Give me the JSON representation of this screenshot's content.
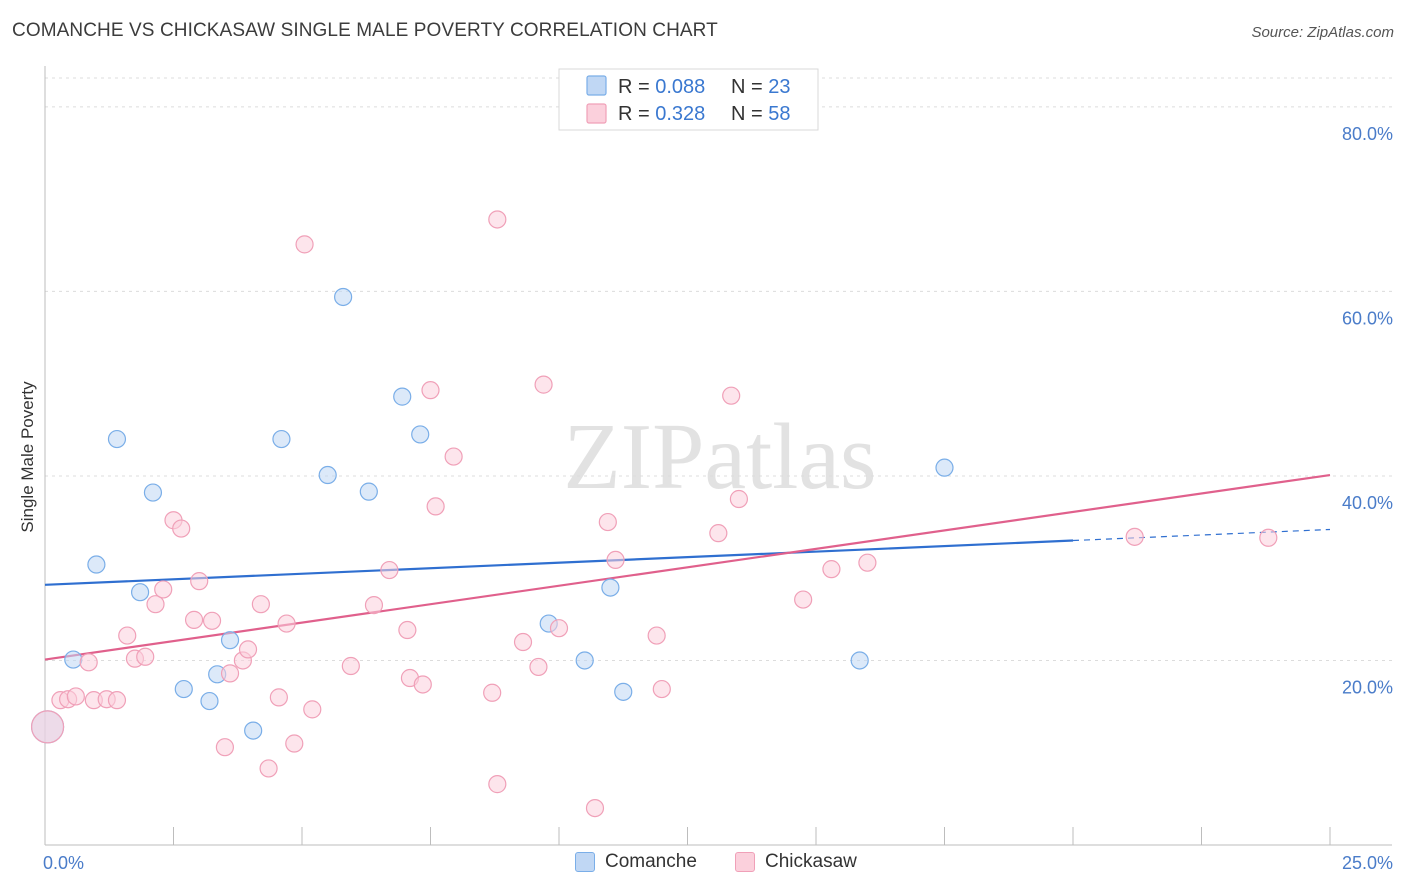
{
  "chart_data": {
    "type": "scatter",
    "title": "COMANCHE VS CHICKASAW SINGLE MALE POVERTY CORRELATION CHART",
    "source": "Source: ZipAtlas.com",
    "xlabel": "",
    "ylabel": "Single Male Poverty",
    "xlim": [
      0,
      25
    ],
    "ylim": [
      0,
      84
    ],
    "x_tick_labels": [
      "0.0%",
      "25.0%"
    ],
    "y_ticks": [
      20,
      40,
      60,
      80
    ],
    "y_tick_labels": [
      "20.0%",
      "40.0%",
      "60.0%",
      "80.0%"
    ],
    "watermark": "ZIPatlas",
    "legend": {
      "rows": [
        {
          "r_label": "R = ",
          "r_value": "0.088",
          "n_label": "N = ",
          "n_value": "23"
        },
        {
          "r_label": "R = ",
          "r_value": "0.328",
          "n_label": "N = ",
          "n_value": "58"
        }
      ]
    },
    "series": [
      {
        "name": "Comanche",
        "color": "#7aaee8",
        "fill": "#c0d7f4",
        "line_color": "#2f6fd0",
        "trend": {
          "x0": 0,
          "y0": 28.2,
          "x1": 20,
          "y1": 33.0,
          "dash_to_x": 25,
          "dash_to_y": 34.2
        },
        "points": [
          [
            0.05,
            12.8
          ],
          [
            1.0,
            30.4
          ],
          [
            1.4,
            44.0
          ],
          [
            1.85,
            27.4
          ],
          [
            2.1,
            38.2
          ],
          [
            0.55,
            20.1
          ],
          [
            2.7,
            16.9
          ],
          [
            3.2,
            15.6
          ],
          [
            3.35,
            18.5
          ],
          [
            3.6,
            22.2
          ],
          [
            4.05,
            12.4
          ],
          [
            4.6,
            44.0
          ],
          [
            5.5,
            40.1
          ],
          [
            5.8,
            59.4
          ],
          [
            6.3,
            38.3
          ],
          [
            6.95,
            48.6
          ],
          [
            7.3,
            44.5
          ],
          [
            9.8,
            24.0
          ],
          [
            10.5,
            20.0
          ],
          [
            11.0,
            27.9
          ],
          [
            11.25,
            16.6
          ],
          [
            15.85,
            20.0
          ],
          [
            17.5,
            40.9
          ]
        ]
      },
      {
        "name": "Chickasaw",
        "color": "#f0a0b8",
        "fill": "#fbd0dc",
        "line_color": "#e0608c",
        "trend": {
          "x0": 0,
          "y0": 20.1,
          "x1": 25,
          "y1": 40.1
        },
        "points": [
          [
            0.05,
            12.8
          ],
          [
            0.3,
            15.7
          ],
          [
            0.45,
            15.8
          ],
          [
            0.6,
            16.1
          ],
          [
            0.85,
            19.8
          ],
          [
            0.95,
            15.7
          ],
          [
            1.2,
            15.8
          ],
          [
            1.4,
            15.7
          ],
          [
            1.6,
            22.7
          ],
          [
            1.75,
            20.2
          ],
          [
            1.95,
            20.4
          ],
          [
            2.15,
            26.1
          ],
          [
            2.3,
            27.7
          ],
          [
            2.5,
            35.2
          ],
          [
            2.65,
            34.3
          ],
          [
            2.9,
            24.4
          ],
          [
            3.0,
            28.6
          ],
          [
            3.25,
            24.3
          ],
          [
            3.5,
            10.6
          ],
          [
            3.6,
            18.6
          ],
          [
            3.85,
            20.0
          ],
          [
            3.95,
            21.2
          ],
          [
            4.2,
            26.1
          ],
          [
            4.35,
            8.3
          ],
          [
            4.55,
            16.0
          ],
          [
            4.7,
            24.0
          ],
          [
            4.85,
            11.0
          ],
          [
            5.05,
            65.1
          ],
          [
            5.2,
            14.7
          ],
          [
            5.95,
            19.4
          ],
          [
            6.4,
            26.0
          ],
          [
            6.7,
            29.8
          ],
          [
            7.05,
            23.3
          ],
          [
            7.1,
            18.1
          ],
          [
            7.35,
            17.4
          ],
          [
            7.5,
            49.3
          ],
          [
            7.6,
            36.7
          ],
          [
            7.95,
            42.1
          ],
          [
            8.7,
            16.5
          ],
          [
            8.8,
            67.8
          ],
          [
            8.8,
            6.6
          ],
          [
            9.3,
            22.0
          ],
          [
            9.6,
            19.3
          ],
          [
            9.7,
            49.9
          ],
          [
            10.0,
            23.5
          ],
          [
            10.7,
            4.0
          ],
          [
            10.95,
            35.0
          ],
          [
            11.1,
            30.9
          ],
          [
            11.9,
            22.7
          ],
          [
            12.0,
            16.9
          ],
          [
            13.1,
            33.8
          ],
          [
            13.35,
            48.7
          ],
          [
            13.5,
            37.5
          ],
          [
            14.75,
            26.6
          ],
          [
            15.3,
            29.9
          ],
          [
            16.0,
            30.6
          ],
          [
            21.2,
            33.4
          ],
          [
            23.8,
            33.3
          ]
        ]
      }
    ]
  }
}
